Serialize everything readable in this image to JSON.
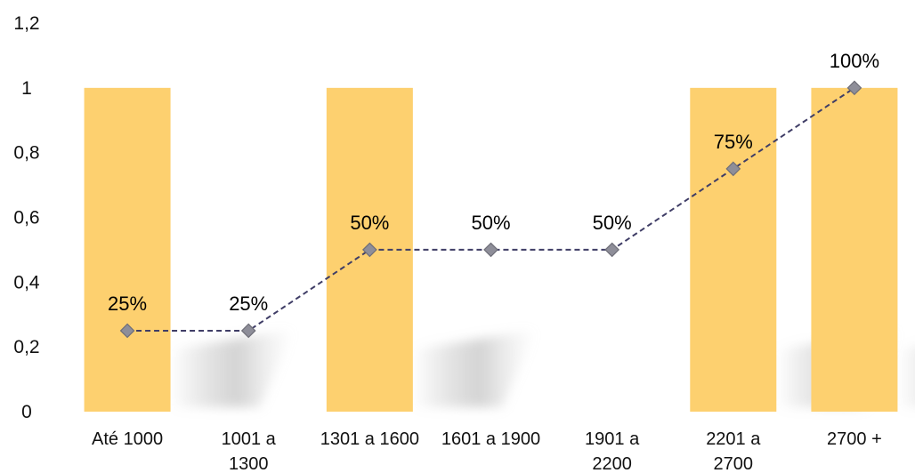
{
  "chart_data": {
    "type": "bar+line",
    "categories": [
      [
        "Até 1000"
      ],
      [
        "1001 a",
        "1300"
      ],
      [
        "1301 a 1600"
      ],
      [
        "1601 a 1900"
      ],
      [
        "1901 a",
        "2200"
      ],
      [
        "2201 a",
        "2700"
      ],
      [
        "2700 +"
      ]
    ],
    "bar_values": [
      1,
      0,
      1,
      0,
      0,
      1,
      1
    ],
    "line_values": [
      0.25,
      0.25,
      0.5,
      0.5,
      0.5,
      0.75,
      1.0
    ],
    "data_labels": [
      "25%",
      "25%",
      "50%",
      "50%",
      "50%",
      "75%",
      "100%"
    ],
    "y_ticks": [
      "0",
      "0,2",
      "0,4",
      "0,6",
      "0,8",
      "1",
      "1,2"
    ],
    "ylim": [
      0,
      1.2
    ],
    "grid": false,
    "colors": {
      "bar": "#FDD06F",
      "line": "#3F3D66",
      "marker": "#8E8E99",
      "marker_stroke": "#6E6E78"
    }
  }
}
